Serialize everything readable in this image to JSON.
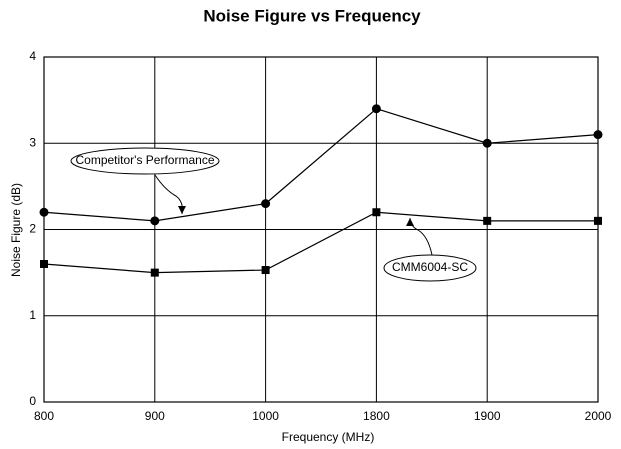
{
  "chart_data": {
    "type": "line",
    "title": "Noise Figure vs Frequency",
    "x_label": "Frequency (MHz)",
    "y_label": "Noise Figure (dB)",
    "categories": [
      "800",
      "900",
      "1000",
      "1800",
      "1900",
      "2000"
    ],
    "series": [
      {
        "name": "Competitor's Performance",
        "color": "#000000",
        "marker": "circle",
        "values": [
          2.2,
          2.1,
          2.3,
          3.4,
          3.0,
          3.1
        ]
      },
      {
        "name": "CMM6004-SC",
        "color": "#000000",
        "marker": "square",
        "values": [
          1.6,
          1.5,
          1.53,
          2.2,
          2.1,
          2.1
        ]
      }
    ],
    "ylim": [
      0,
      4
    ],
    "yticks": [
      0,
      1,
      2,
      3,
      4
    ],
    "grid": true
  }
}
